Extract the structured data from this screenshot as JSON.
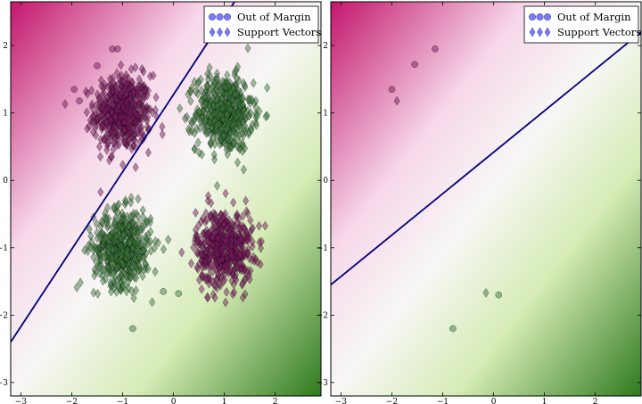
{
  "chart_data": [
    {
      "type": "scatter",
      "xlim": [
        -3.2,
        2.9
      ],
      "ylim": [
        -3.2,
        2.65
      ],
      "x_ticks": [
        -3,
        -2,
        -1,
        0,
        1,
        2
      ],
      "y_ticks": [
        -3,
        -2,
        -1,
        0,
        1,
        2
      ],
      "background": "decision function gradient: pink/magenta upper-left, green lower-right",
      "decision_line": {
        "points": [
          [
            -3.2,
            -2.4
          ],
          [
            1.2,
            2.65
          ]
        ]
      },
      "legend": {
        "placement": "top-right",
        "entries": [
          "Out of Margin",
          "Support Vectors"
        ]
      },
      "clusters": [
        {
          "class": "pink",
          "center": [
            -1.0,
            1.0
          ],
          "n": 520,
          "spread": 0.28
        },
        {
          "class": "green",
          "center": [
            1.0,
            1.0
          ],
          "n": 520,
          "spread": 0.28
        },
        {
          "class": "green",
          "center": [
            -1.0,
            -1.0
          ],
          "n": 520,
          "spread": 0.28
        },
        {
          "class": "pink",
          "center": [
            1.0,
            -1.0
          ],
          "n": 520,
          "spread": 0.28
        }
      ],
      "out_of_margin_points": [
        {
          "x": -1.2,
          "y": 1.95,
          "class": "pink"
        },
        {
          "x": -1.1,
          "y": 1.95,
          "class": "pink"
        },
        {
          "x": -1.95,
          "y": 1.35,
          "class": "pink"
        },
        {
          "x": -1.85,
          "y": 1.18,
          "class": "pink"
        },
        {
          "x": -1.5,
          "y": 1.7,
          "class": "pink"
        },
        {
          "x": -0.2,
          "y": -1.65,
          "class": "green"
        },
        {
          "x": 0.1,
          "y": -1.68,
          "class": "green"
        },
        {
          "x": -0.8,
          "y": -2.2,
          "class": "green"
        }
      ]
    },
    {
      "type": "scatter",
      "xlim": [
        -3.2,
        2.9
      ],
      "ylim": [
        -3.2,
        2.65
      ],
      "x_ticks": [
        -3,
        -2,
        -1,
        0,
        1,
        2
      ],
      "y_ticks": [
        -3,
        -2,
        -1,
        0,
        1,
        2
      ],
      "background": "decision function gradient: pink/magenta upper-left, green lower-right",
      "decision_line": {
        "points": [
          [
            -3.2,
            -1.55
          ],
          [
            2.9,
            2.2
          ]
        ]
      },
      "legend": {
        "placement": "top-right",
        "entries": [
          "Out of Margin",
          "Support Vectors"
        ]
      },
      "points": [
        {
          "x": -2.0,
          "y": 1.35,
          "marker": "circle",
          "class": "pink"
        },
        {
          "x": -1.55,
          "y": 1.72,
          "marker": "circle",
          "class": "pink"
        },
        {
          "x": -1.15,
          "y": 1.95,
          "marker": "circle",
          "class": "pink"
        },
        {
          "x": -1.9,
          "y": 1.18,
          "marker": "diamond",
          "class": "pink"
        },
        {
          "x": 0.1,
          "y": -1.7,
          "marker": "circle",
          "class": "green"
        },
        {
          "x": -0.8,
          "y": -2.2,
          "marker": "circle",
          "class": "green"
        },
        {
          "x": -0.15,
          "y": -1.67,
          "marker": "diamond",
          "class": "green"
        }
      ]
    }
  ],
  "colors": {
    "pink_strong": "#c2166c",
    "pink_light": "#f7d8ea",
    "neutral": "#f7f7f5",
    "green_light": "#d6ecb6",
    "green_strong": "#2f7a1e",
    "line": "#00007a",
    "pink_marker": "#7a1a5e",
    "green_marker": "#3c7a3c",
    "legend_marker": "#6c6cf0"
  }
}
